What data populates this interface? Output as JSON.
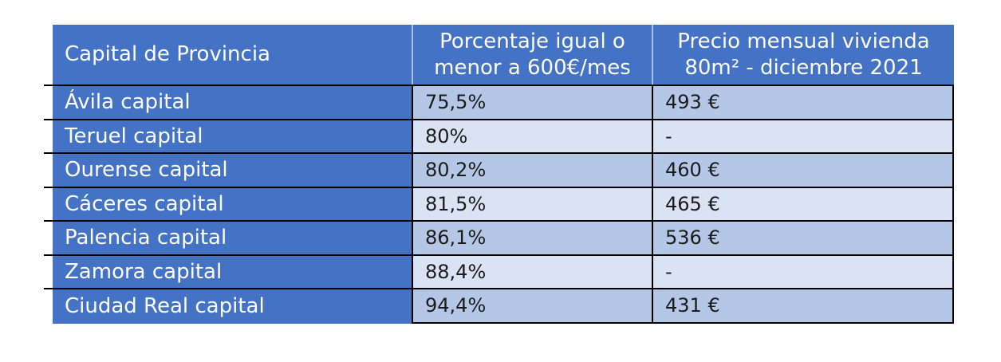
{
  "chart_data": {
    "type": "table",
    "title": "",
    "columns": [
      "Capital de Provincia",
      "Porcentaje igual o menor a 600€/mes",
      "Precio mensual vivienda 80m² - diciembre 2021"
    ],
    "rows": [
      [
        "Ávila capital",
        "75,5%",
        "493 €"
      ],
      [
        "Teruel capital",
        "80%",
        "-"
      ],
      [
        "Ourense capital",
        "80,2%",
        "460 €"
      ],
      [
        "Cáceres capital",
        "81,5%",
        "465 €"
      ],
      [
        "Palencia capital",
        "86,1%",
        "536 €"
      ],
      [
        "Zamora capital",
        "88,4%",
        "-"
      ],
      [
        "Ciudad Real capital",
        "94,4%",
        "431 €"
      ]
    ]
  },
  "table": {
    "header": {
      "col1": "Capital de Provincia",
      "col2_line1": "Porcentaje igual o",
      "col2_line2": "menor a 600€/mes",
      "col3_line1": "Precio mensual vivienda",
      "col3_line2": "80m² - diciembre 2021"
    },
    "rows": [
      {
        "capital": "Ávila capital",
        "percentage": "75,5%",
        "price": "493 €"
      },
      {
        "capital": "Teruel capital",
        "percentage": "80%",
        "price": "-"
      },
      {
        "capital": "Ourense capital",
        "percentage": "80,2%",
        "price": "460 €"
      },
      {
        "capital": "Cáceres capital",
        "percentage": "81,5%",
        "price": "465 €"
      },
      {
        "capital": "Palencia capital",
        "percentage": "86,1%",
        "price": "536 €"
      },
      {
        "capital": "Zamora capital",
        "percentage": "88,4%",
        "price": "-"
      },
      {
        "capital": "Ciudad Real capital",
        "percentage": "94,4%",
        "price": "431 €"
      }
    ],
    "colors": {
      "accent_blue": "#4472C4",
      "band_dark": "#B4C7E7",
      "band_light": "#DAE3F3",
      "border_black": "#000000",
      "header_divider": "#A9BEE4",
      "header_text": "#FFFFFF",
      "body_text": "#1B1B1B"
    }
  }
}
